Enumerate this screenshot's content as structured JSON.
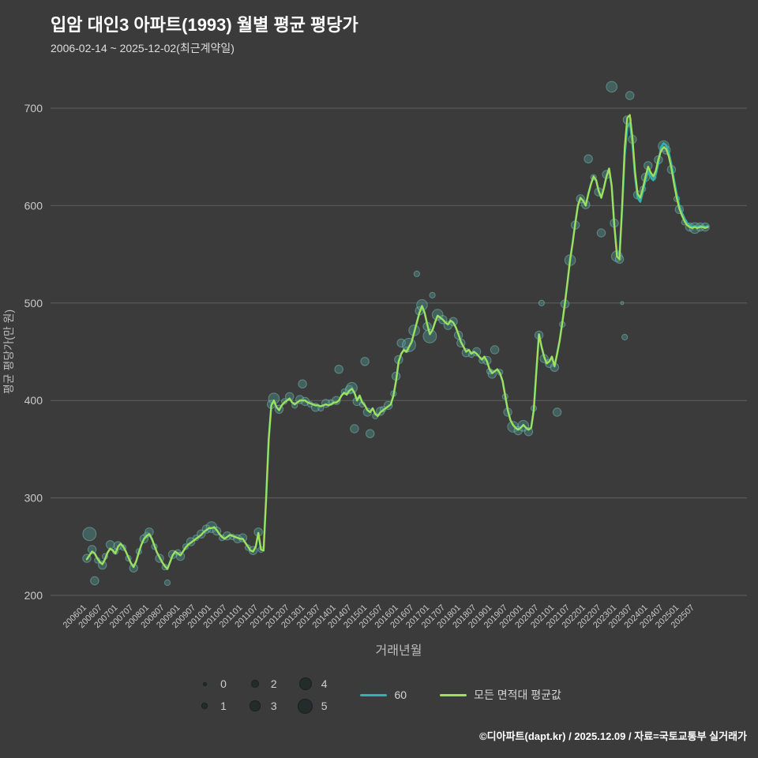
{
  "header": {
    "title": "입암 대인3 아파트(1993) 월별 평균 평당가",
    "subtitle": "2006-02-14 ~ 2025-12-02(최근계약일)"
  },
  "footer": {
    "credit": "©디아파트(dapt.kr) / 2025.12.09 / 자료=국토교통부 실거래가"
  },
  "chart_data": {
    "type": "scatter",
    "title": "입암 대인3 아파트(1993) 월별 평균 평당가",
    "xlabel": "거래년월",
    "ylabel": "평균 평당가(만 원)",
    "ylim": [
      185,
      735
    ],
    "grid": "horizontal",
    "legend_position": "bottom",
    "y_ticks": [
      200,
      300,
      400,
      500,
      600,
      700
    ],
    "x_ticks": [
      "200601",
      "200607",
      "200701",
      "200707",
      "200801",
      "200807",
      "200901",
      "200907",
      "201001",
      "201007",
      "201101",
      "201107",
      "201201",
      "201207",
      "201301",
      "201307",
      "201401",
      "201407",
      "201501",
      "201507",
      "201601",
      "201607",
      "201701",
      "201707",
      "201801",
      "201807",
      "201901",
      "201907",
      "202001",
      "202007",
      "202101",
      "202107",
      "202201",
      "202207",
      "202301",
      "202307",
      "202401",
      "202407",
      "202501",
      "202507"
    ],
    "start_month": "2006-01",
    "months_count": 240,
    "size_legend": [
      0,
      1,
      2,
      3,
      4,
      5
    ],
    "colors": {
      "background": "#3b3b3b",
      "grid": "#5f5f5f",
      "tick_text": "#c9c9c9",
      "axis_text": "#bdbdbd",
      "title": "#ffffff",
      "bubble_fill": "rgba(77,148,142,0.42)",
      "bubble_stroke": "rgba(140,210,202,0.45)"
    },
    "series": [
      {
        "name": "60",
        "color": "#2fb3aa",
        "values": [
          237,
          241,
          245,
          243,
          238,
          234,
          232,
          237,
          244,
          248,
          246,
          243,
          250,
          253,
          250,
          245,
          239,
          233,
          229,
          235,
          244,
          252,
          258,
          261,
          263,
          258,
          251,
          244,
          239,
          234,
          230,
          227,
          234,
          241,
          245,
          243,
          241,
          245,
          249,
          252,
          254,
          256,
          258,
          260,
          262,
          265,
          267,
          269,
          269,
          270,
          267,
          263,
          260,
          258,
          260,
          262,
          261,
          260,
          259,
          258,
          258,
          254,
          250,
          246,
          245,
          250,
          264,
          247,
          246,
          300,
          360,
          395,
          400,
          393,
          390,
          395,
          398,
          400,
          402,
          398,
          396,
          398,
          400,
          400,
          400,
          398,
          397,
          396,
          395,
          395,
          394,
          395,
          396,
          395,
          396,
          398,
          398,
          400,
          405,
          408,
          406,
          410,
          412,
          408,
          400,
          405,
          398,
          395,
          390,
          388,
          392,
          386,
          384,
          388,
          390,
          392,
          394,
          396,
          405,
          420,
          440,
          448,
          452,
          450,
          455,
          460,
          470,
          480,
          490,
          497,
          490,
          478,
          468,
          472,
          480,
          487,
          485,
          483,
          480,
          478,
          482,
          480,
          475,
          468,
          460,
          455,
          450,
          452,
          448,
          450,
          448,
          445,
          442,
          445,
          440,
          432,
          428,
          430,
          432,
          428,
          420,
          405,
          390,
          380,
          375,
          372,
          370,
          372,
          375,
          372,
          370,
          372,
          390,
          430,
          468,
          455,
          445,
          438,
          440,
          445,
          435,
          448,
          462,
          480,
          500,
          522,
          545,
          562,
          582,
          600,
          608,
          605,
          600,
          612,
          622,
          630,
          626,
          615,
          608,
          618,
          630,
          638,
          620,
          580,
          552,
          550,
          596,
          652,
          680,
          685,
          664,
          630,
          608,
          604,
          614,
          626,
          636,
          630,
          626,
          632,
          644,
          660,
          664,
          662,
          654,
          642,
          626,
          612,
          600,
          593,
          587,
          582,
          580,
          578,
          579,
          578,
          579,
          579,
          578,
          579
        ]
      },
      {
        "name": "모든 면적대 평균값",
        "color": "#a3e055",
        "values": [
          237,
          241,
          245,
          243,
          238,
          234,
          232,
          237,
          244,
          248,
          246,
          243,
          250,
          253,
          250,
          245,
          239,
          233,
          229,
          235,
          244,
          252,
          258,
          261,
          263,
          258,
          251,
          244,
          239,
          234,
          230,
          227,
          234,
          241,
          245,
          243,
          241,
          245,
          249,
          252,
          254,
          256,
          258,
          260,
          262,
          265,
          267,
          269,
          269,
          270,
          267,
          263,
          260,
          258,
          260,
          262,
          261,
          260,
          259,
          258,
          258,
          254,
          250,
          246,
          245,
          250,
          264,
          247,
          246,
          300,
          360,
          395,
          400,
          393,
          390,
          395,
          398,
          400,
          402,
          398,
          396,
          398,
          400,
          400,
          400,
          398,
          397,
          396,
          395,
          395,
          394,
          395,
          396,
          395,
          396,
          398,
          398,
          400,
          405,
          408,
          406,
          410,
          412,
          408,
          400,
          405,
          398,
          395,
          390,
          388,
          392,
          386,
          384,
          388,
          390,
          392,
          394,
          396,
          405,
          420,
          440,
          448,
          452,
          450,
          455,
          460,
          470,
          480,
          490,
          497,
          490,
          478,
          468,
          472,
          480,
          487,
          485,
          483,
          480,
          478,
          482,
          480,
          475,
          468,
          460,
          455,
          450,
          452,
          448,
          450,
          448,
          445,
          442,
          445,
          440,
          432,
          428,
          430,
          432,
          428,
          420,
          405,
          390,
          380,
          375,
          372,
          370,
          372,
          375,
          372,
          370,
          372,
          390,
          430,
          468,
          455,
          445,
          438,
          440,
          445,
          435,
          448,
          462,
          480,
          500,
          522,
          545,
          562,
          582,
          600,
          608,
          605,
          600,
          612,
          622,
          630,
          626,
          615,
          608,
          618,
          630,
          638,
          620,
          580,
          548,
          545,
          600,
          660,
          690,
          693,
          670,
          635,
          612,
          608,
          618,
          630,
          640,
          634,
          630,
          636,
          648,
          656,
          660,
          658,
          650,
          638,
          622,
          608,
          597,
          590,
          584,
          580,
          578,
          577,
          578,
          577,
          578,
          578,
          577,
          578
        ]
      }
    ],
    "bubbles": [
      [
        200601,
        238,
        2
      ],
      [
        200602,
        263,
        4
      ],
      [
        200603,
        247,
        2
      ],
      [
        200604,
        215,
        2
      ],
      [
        200605,
        236,
        1
      ],
      [
        200607,
        231,
        2
      ],
      [
        200608,
        240,
        1
      ],
      [
        200610,
        252,
        2
      ],
      [
        200612,
        245,
        1
      ],
      [
        200701,
        251,
        2
      ],
      [
        200703,
        249,
        1
      ],
      [
        200705,
        238,
        1
      ],
      [
        200707,
        228,
        2
      ],
      [
        200709,
        245,
        1
      ],
      [
        200711,
        258,
        2
      ],
      [
        200712,
        262,
        1
      ],
      [
        200801,
        265,
        2
      ],
      [
        200803,
        250,
        1
      ],
      [
        200805,
        238,
        2
      ],
      [
        200807,
        229,
        1
      ],
      [
        200808,
        213,
        1
      ],
      [
        200810,
        242,
        2
      ],
      [
        200812,
        244,
        1
      ],
      [
        200901,
        240,
        2
      ],
      [
        200903,
        250,
        1
      ],
      [
        200905,
        255,
        2
      ],
      [
        200907,
        259,
        1
      ],
      [
        200909,
        263,
        2
      ],
      [
        200911,
        268,
        2
      ],
      [
        201001,
        270,
        3
      ],
      [
        201003,
        266,
        2
      ],
      [
        201005,
        259,
        1
      ],
      [
        201007,
        261,
        2
      ],
      [
        201009,
        260,
        1
      ],
      [
        201011,
        258,
        2
      ],
      [
        201101,
        259,
        2
      ],
      [
        201103,
        249,
        1
      ],
      [
        201105,
        246,
        2
      ],
      [
        201107,
        265,
        2
      ],
      [
        201108,
        247,
        1
      ],
      [
        201112,
        396,
        2
      ],
      [
        201201,
        402,
        3
      ],
      [
        201203,
        391,
        2
      ],
      [
        201205,
        399,
        1
      ],
      [
        201207,
        404,
        2
      ],
      [
        201209,
        395,
        1
      ],
      [
        201211,
        401,
        2
      ],
      [
        201212,
        417,
        2
      ],
      [
        201301,
        399,
        2
      ],
      [
        201303,
        396,
        1
      ],
      [
        201305,
        393,
        2
      ],
      [
        201307,
        392,
        1
      ],
      [
        201309,
        397,
        2
      ],
      [
        201311,
        398,
        1
      ],
      [
        201401,
        400,
        2
      ],
      [
        201402,
        432,
        2
      ],
      [
        201404,
        409,
        1
      ],
      [
        201406,
        411,
        2
      ],
      [
        201407,
        413,
        3
      ],
      [
        201408,
        371,
        2
      ],
      [
        201409,
        399,
        2
      ],
      [
        201411,
        396,
        1
      ],
      [
        201412,
        440,
        2
      ],
      [
        201501,
        388,
        2
      ],
      [
        201502,
        366,
        2
      ],
      [
        201504,
        384,
        1
      ],
      [
        201506,
        389,
        2
      ],
      [
        201507,
        391,
        1
      ],
      [
        201509,
        395,
        2
      ],
      [
        201511,
        407,
        1
      ],
      [
        201512,
        425,
        2
      ],
      [
        201601,
        442,
        2
      ],
      [
        201602,
        459,
        2
      ],
      [
        201604,
        452,
        1
      ],
      [
        201605,
        457,
        4
      ],
      [
        201607,
        472,
        3
      ],
      [
        201608,
        530,
        1
      ],
      [
        201609,
        492,
        2
      ],
      [
        201610,
        498,
        3
      ],
      [
        201612,
        476,
        2
      ],
      [
        201701,
        466,
        4
      ],
      [
        201702,
        508,
        1
      ],
      [
        201704,
        488,
        3
      ],
      [
        201706,
        483,
        2
      ],
      [
        201708,
        477,
        2
      ],
      [
        201710,
        481,
        2
      ],
      [
        201712,
        467,
        2
      ],
      [
        201801,
        459,
        2
      ],
      [
        201803,
        449,
        2
      ],
      [
        201805,
        447,
        1
      ],
      [
        201807,
        450,
        2
      ],
      [
        201809,
        441,
        1
      ],
      [
        201811,
        441,
        2
      ],
      [
        201812,
        430,
        1
      ],
      [
        201901,
        427,
        2
      ],
      [
        201902,
        452,
        2
      ],
      [
        201904,
        429,
        1
      ],
      [
        201906,
        404,
        1
      ],
      [
        201907,
        388,
        2
      ],
      [
        201909,
        373,
        3
      ],
      [
        201911,
        369,
        2
      ],
      [
        202001,
        374,
        3
      ],
      [
        202003,
        368,
        2
      ],
      [
        202005,
        392,
        1
      ],
      [
        202007,
        467,
        2
      ],
      [
        202008,
        500,
        1
      ],
      [
        202009,
        443,
        2
      ],
      [
        202011,
        438,
        2
      ],
      [
        202101,
        434,
        2
      ],
      [
        202102,
        388,
        2
      ],
      [
        202104,
        478,
        1
      ],
      [
        202105,
        499,
        2
      ],
      [
        202107,
        544,
        3
      ],
      [
        202109,
        580,
        2
      ],
      [
        202111,
        607,
        2
      ],
      [
        202201,
        601,
        2
      ],
      [
        202202,
        648,
        2
      ],
      [
        202204,
        629,
        1
      ],
      [
        202206,
        614,
        2
      ],
      [
        202207,
        572,
        2
      ],
      [
        202209,
        632,
        2
      ],
      [
        202211,
        722,
        3
      ],
      [
        202212,
        582,
        2
      ],
      [
        202301,
        548,
        3
      ],
      [
        202302,
        545,
        2
      ],
      [
        202303,
        500,
        0
      ],
      [
        202304,
        465,
        1
      ],
      [
        202305,
        688,
        2
      ],
      [
        202306,
        713,
        2
      ],
      [
        202307,
        668,
        2
      ],
      [
        202309,
        611,
        2
      ],
      [
        202311,
        617,
        1
      ],
      [
        202312,
        629,
        2
      ],
      [
        202401,
        641,
        2
      ],
      [
        202403,
        629,
        1
      ],
      [
        202405,
        647,
        2
      ],
      [
        202407,
        661,
        3
      ],
      [
        202408,
        657,
        2
      ],
      [
        202410,
        637,
        2
      ],
      [
        202412,
        607,
        1
      ],
      [
        202501,
        596,
        2
      ],
      [
        202503,
        583,
        1
      ],
      [
        202505,
        578,
        2
      ],
      [
        202507,
        577,
        3
      ],
      [
        202509,
        578,
        2
      ],
      [
        202511,
        578,
        2
      ]
    ]
  }
}
